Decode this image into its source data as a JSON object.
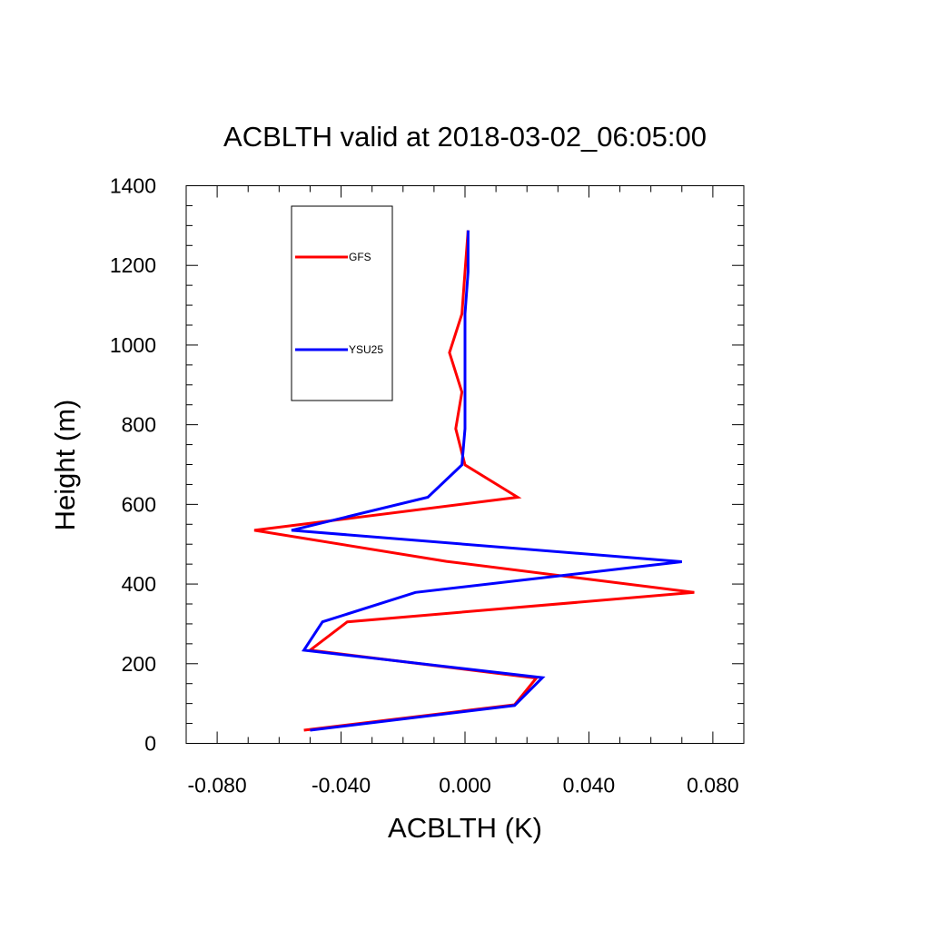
{
  "chart_data": {
    "type": "line",
    "title": "ACBLTH valid at 2018-03-02_06:05:00",
    "xlabel": "ACBLTH (K)",
    "ylabel": "Height (m)",
    "xlim": [
      -0.09,
      0.09
    ],
    "ylim": [
      0,
      1400
    ],
    "x_ticks": [
      -0.08,
      -0.04,
      0.0,
      0.04,
      0.08
    ],
    "x_tick_labels": [
      "-0.080",
      "-0.040",
      "0.000",
      "0.040",
      "0.080"
    ],
    "x_minor_step": 0.01,
    "y_ticks": [
      0,
      200,
      400,
      600,
      800,
      1000,
      1200,
      1400
    ],
    "y_tick_labels": [
      "0",
      "200",
      "400",
      "600",
      "800",
      "1000",
      "1200",
      "1400"
    ],
    "y_minor_step": 50,
    "grid": false,
    "legend_position": "top-left",
    "series": [
      {
        "name": "GFS",
        "color": "#ff0000",
        "points": [
          [
            -0.052,
            33
          ],
          [
            0.016,
            97
          ],
          [
            0.023,
            164
          ],
          [
            -0.05,
            234
          ],
          [
            -0.038,
            305
          ],
          [
            0.074,
            379
          ],
          [
            -0.006,
            457
          ],
          [
            -0.068,
            535
          ],
          [
            0.017,
            618
          ],
          [
            0.0,
            699
          ],
          [
            -0.003,
            790
          ],
          [
            -0.001,
            882
          ],
          [
            -0.005,
            981
          ],
          [
            -0.001,
            1078
          ],
          [
            0.0,
            1184
          ],
          [
            0.001,
            1288
          ]
        ]
      },
      {
        "name": "YSU25",
        "color": "#0000ff",
        "points": [
          [
            -0.05,
            33
          ],
          [
            0.016,
            95
          ],
          [
            0.025,
            165
          ],
          [
            -0.052,
            234
          ],
          [
            -0.046,
            305
          ],
          [
            -0.016,
            379
          ],
          [
            0.07,
            456
          ],
          [
            -0.056,
            535
          ],
          [
            -0.012,
            618
          ],
          [
            -0.001,
            699
          ],
          [
            0.0,
            790
          ],
          [
            0.0,
            882
          ],
          [
            0.0,
            981
          ],
          [
            0.0,
            1078
          ],
          [
            0.001,
            1184
          ],
          [
            0.001,
            1288
          ]
        ]
      }
    ]
  }
}
